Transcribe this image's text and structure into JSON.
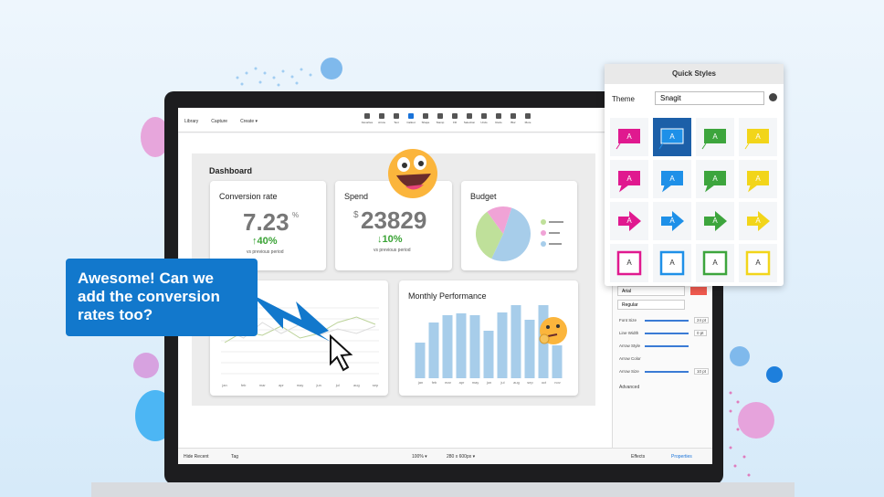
{
  "toolbar": {
    "left": [
      "Library",
      "Capture",
      "Create ▾"
    ],
    "tools": [
      "Favorites",
      "Arrow",
      "Text",
      "Callout",
      "Shape",
      "Stamp",
      "Fill",
      "Selection",
      "Undo",
      "Redo",
      "Blur",
      "More"
    ]
  },
  "dashboard": {
    "title": "Dashboard",
    "conversion": {
      "title": "Conversion rate",
      "value": "7.23",
      "unit": "%",
      "change": "↑40%",
      "note": "vs previous period"
    },
    "spend": {
      "title": "Spend",
      "currency": "$",
      "value": "23829",
      "change": "↓10%",
      "note": "vs previous period"
    },
    "budget": {
      "title": "Budget",
      "slices": [
        {
          "value": 52,
          "color": "#a7cdea"
        },
        {
          "value": 33,
          "color": "#bfe09a"
        },
        {
          "value": 15,
          "color": "#f0a3d6"
        }
      ]
    },
    "line_chart": {
      "categories": [
        "jan",
        "feb",
        "mar",
        "apr",
        "may",
        "jun",
        "jul",
        "aug",
        "sep"
      ],
      "series": [
        {
          "color": "#bcd39a",
          "values": [
            40,
            52,
            48,
            58,
            45,
            50,
            62,
            68,
            60
          ]
        },
        {
          "color": "#dcdcdc",
          "values": [
            55,
            45,
            62,
            50,
            60,
            48,
            55,
            50,
            58
          ]
        }
      ]
    },
    "monthly": {
      "title": "Monthly Performance",
      "categories": [
        "jan",
        "feb",
        "mar",
        "apr",
        "may",
        "jun",
        "jul",
        "aug",
        "sep",
        "oct",
        "nov"
      ],
      "values": [
        39,
        61,
        69,
        71,
        69,
        52,
        72,
        80,
        64,
        80,
        36
      ],
      "color": "#a7cdea"
    }
  },
  "callout": {
    "lines": [
      "Awesome! Can we",
      "add the conversion",
      "rates too?"
    ]
  },
  "quick_styles": {
    "title": "Quick Styles",
    "theme_label": "Theme",
    "theme": "Snagit",
    "tile_label": "A"
  },
  "properties": {
    "font": "Arial",
    "weight": "Regular",
    "rows": [
      {
        "label": "Font Size",
        "value": "24 pt"
      },
      {
        "label": "Line Width",
        "value": "0 pt"
      },
      {
        "label": "Arrow Style"
      },
      {
        "label": "Arrow Color"
      },
      {
        "label": "Arrow Size",
        "value": "10 pt"
      }
    ],
    "advanced": "Advanced"
  },
  "statusbar": {
    "left": [
      "Hide Recent",
      "Tag"
    ],
    "zoom": "100% ▾",
    "size": "280 x 600px ▾",
    "right": [
      "Effects",
      "Properties"
    ]
  }
}
